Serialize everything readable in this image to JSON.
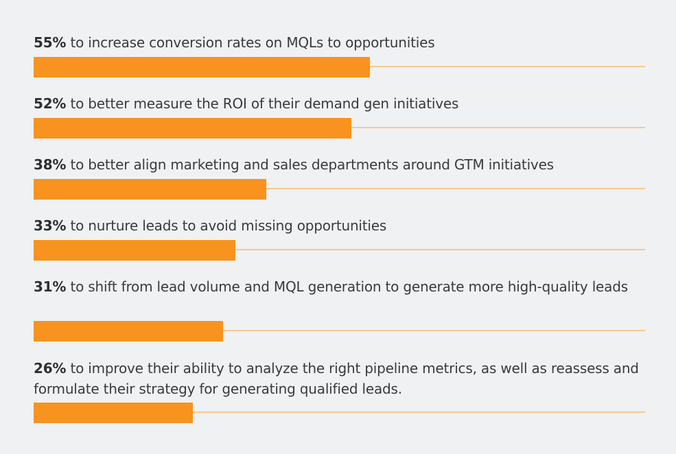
{
  "chart_data": {
    "type": "bar",
    "orientation": "horizontal",
    "xlim": [
      0,
      100
    ],
    "colors": {
      "fill": "#f7931e",
      "track": "#f8c98e",
      "background": "#f0f1f3"
    },
    "items": [
      {
        "value": 55,
        "percent_label": "55%",
        "text": " to increase conversion rates on MQLs to opportunities"
      },
      {
        "value": 52,
        "percent_label": "52%",
        "text": " to better measure the ROI of their demand gen initiatives"
      },
      {
        "value": 38,
        "percent_label": "38%",
        "text": " to better align marketing and sales departments around GTM initiatives"
      },
      {
        "value": 33,
        "percent_label": "33%",
        "text": " to nurture leads to avoid missing opportunities"
      },
      {
        "value": 31,
        "percent_label": "31%",
        "text": " to shift from lead volume and MQL generation to generate more high-quality leads"
      },
      {
        "value": 26,
        "percent_label": "26%",
        "text": " to improve their ability to analyze the right pipeline metrics, as well as reassess and formulate their strategy for generating qualified leads."
      }
    ]
  }
}
